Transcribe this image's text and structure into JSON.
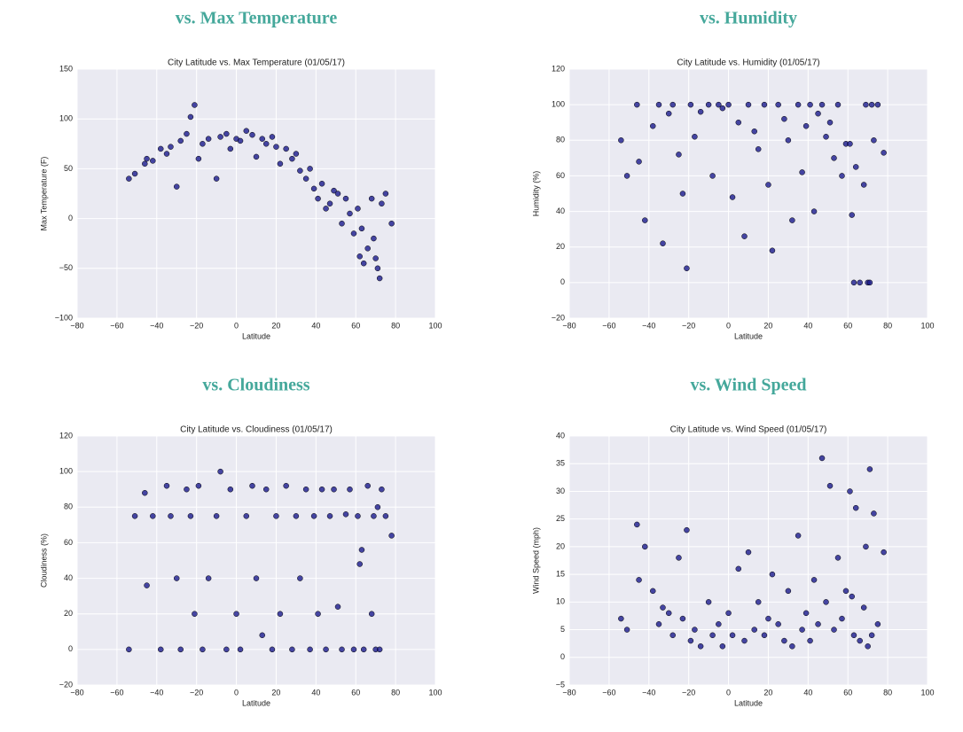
{
  "headings": [
    "vs. Max Temperature",
    "vs. Humidity",
    "vs. Cloudiness",
    "vs. Wind Speed"
  ],
  "chart_data": [
    {
      "type": "scatter",
      "title": "City Latitude vs. Max Temperature (01/05/17)",
      "x_label": "Latitude",
      "y_label": "Max Temperature (F)",
      "color": "#1a1a8c",
      "grid": true,
      "xlim": [
        -80,
        100
      ],
      "xticks": [
        {
          "value": -80,
          "label": "−80"
        },
        {
          "value": -60,
          "label": "−60"
        },
        {
          "value": -40,
          "label": "−40"
        },
        {
          "value": -20,
          "label": "−20"
        },
        0,
        20,
        40,
        60,
        80,
        100
      ],
      "ylim": [
        -100,
        150
      ],
      "yticks": [
        {
          "value": -100,
          "label": "−100"
        },
        {
          "value": -50,
          "label": "−50"
        },
        0,
        50,
        100,
        150
      ],
      "x": [
        -54,
        -51,
        -46,
        -45,
        -42,
        -38,
        -35,
        -33,
        -30,
        -28,
        -25,
        -23,
        -21,
        -19,
        -17,
        -14,
        -10,
        -8,
        -5,
        -3,
        0,
        2,
        5,
        8,
        10,
        13,
        15,
        18,
        20,
        22,
        25,
        28,
        30,
        32,
        35,
        37,
        39,
        41,
        43,
        45,
        47,
        49,
        51,
        53,
        55,
        57,
        59,
        61,
        63,
        64,
        66,
        68,
        69,
        70,
        71,
        72,
        73,
        75,
        78,
        62
      ],
      "values": [
        40,
        45,
        55,
        60,
        58,
        70,
        65,
        72,
        32,
        78,
        85,
        102,
        114,
        60,
        75,
        80,
        40,
        82,
        85,
        70,
        80,
        78,
        88,
        84,
        62,
        80,
        75,
        82,
        72,
        55,
        70,
        60,
        65,
        48,
        40,
        50,
        30,
        20,
        35,
        10,
        15,
        28,
        25,
        -5,
        20,
        5,
        -15,
        10,
        -10,
        -45,
        -30,
        20,
        -20,
        -40,
        -50,
        -60,
        15,
        25,
        -5,
        -38
      ]
    },
    {
      "type": "scatter",
      "title": "City Latitude vs. Humidity (01/05/17)",
      "x_label": "Latitude",
      "y_label": "Humidity (%)",
      "color": "#1a1a8c",
      "grid": true,
      "xlim": [
        -80,
        100
      ],
      "xticks": [
        {
          "value": -80,
          "label": "−80"
        },
        {
          "value": -60,
          "label": "−60"
        },
        {
          "value": -40,
          "label": "−40"
        },
        {
          "value": -20,
          "label": "−20"
        },
        0,
        20,
        40,
        60,
        80,
        100
      ],
      "ylim": [
        -20,
        120
      ],
      "yticks": [
        {
          "value": -20,
          "label": "−20"
        },
        0,
        20,
        40,
        60,
        80,
        100,
        120
      ],
      "x": [
        -54,
        -51,
        -46,
        -45,
        -42,
        -38,
        -35,
        -33,
        -30,
        -28,
        -25,
        -23,
        -21,
        -19,
        -17,
        -14,
        -10,
        -8,
        -5,
        -3,
        0,
        2,
        5,
        8,
        10,
        13,
        15,
        18,
        20,
        22,
        25,
        28,
        30,
        32,
        35,
        37,
        39,
        41,
        43,
        45,
        47,
        49,
        51,
        53,
        55,
        57,
        59,
        61,
        63,
        64,
        66,
        68,
        69,
        70,
        71,
        72,
        73,
        75,
        78,
        62
      ],
      "values": [
        80,
        60,
        100,
        68,
        35,
        88,
        100,
        22,
        95,
        100,
        72,
        50,
        8,
        100,
        82,
        96,
        100,
        60,
        100,
        98,
        100,
        48,
        90,
        26,
        100,
        85,
        75,
        100,
        55,
        18,
        100,
        92,
        80,
        35,
        100,
        62,
        88,
        100,
        40,
        95,
        100,
        82,
        90,
        70,
        100,
        60,
        78,
        78,
        0,
        65,
        0,
        55,
        100,
        0,
        0,
        100,
        80,
        100,
        73,
        38
      ]
    },
    {
      "type": "scatter",
      "title": "City Latitude vs. Cloudiness (01/05/17)",
      "x_label": "Latitude",
      "y_label": "Cloudiness (%)",
      "color": "#1a1a8c",
      "grid": true,
      "xlim": [
        -80,
        100
      ],
      "xticks": [
        {
          "value": -80,
          "label": "−80"
        },
        {
          "value": -60,
          "label": "−60"
        },
        {
          "value": -40,
          "label": "−40"
        },
        {
          "value": -20,
          "label": "−20"
        },
        0,
        20,
        40,
        60,
        80,
        100
      ],
      "ylim": [
        -20,
        120
      ],
      "yticks": [
        {
          "value": -20,
          "label": "−20"
        },
        0,
        20,
        40,
        60,
        80,
        100,
        120
      ],
      "x": [
        -54,
        -51,
        -46,
        -45,
        -42,
        -38,
        -35,
        -33,
        -30,
        -28,
        -25,
        -23,
        -21,
        -19,
        -17,
        -14,
        -10,
        -8,
        -5,
        -3,
        0,
        2,
        5,
        8,
        10,
        13,
        15,
        18,
        20,
        22,
        25,
        28,
        30,
        32,
        35,
        37,
        39,
        41,
        43,
        45,
        47,
        49,
        51,
        53,
        55,
        57,
        59,
        61,
        63,
        64,
        66,
        68,
        69,
        70,
        71,
        72,
        73,
        75,
        78,
        62
      ],
      "values": [
        0,
        75,
        88,
        36,
        75,
        0,
        92,
        75,
        40,
        0,
        90,
        75,
        20,
        92,
        0,
        40,
        75,
        100,
        0,
        90,
        20,
        0,
        75,
        92,
        40,
        8,
        90,
        0,
        75,
        20,
        92,
        0,
        75,
        40,
        90,
        0,
        75,
        20,
        90,
        0,
        75,
        90,
        24,
        0,
        76,
        90,
        0,
        75,
        56,
        0,
        92,
        20,
        75,
        0,
        80,
        0,
        90,
        75,
        64,
        48
      ]
    },
    {
      "type": "scatter",
      "title": "City Latitude vs. Wind Speed (01/05/17)",
      "x_label": "Latitude",
      "y_label": "Wind Speed (mph)",
      "color": "#1a1a8c",
      "grid": true,
      "xlim": [
        -80,
        100
      ],
      "xticks": [
        {
          "value": -80,
          "label": "−80"
        },
        {
          "value": -60,
          "label": "−60"
        },
        {
          "value": -40,
          "label": "−40"
        },
        {
          "value": -20,
          "label": "−20"
        },
        0,
        20,
        40,
        60,
        80,
        100
      ],
      "ylim": [
        -5,
        40
      ],
      "yticks": [
        {
          "value": -5,
          "label": "−5"
        },
        0,
        5,
        10,
        15,
        20,
        25,
        30,
        35,
        40
      ],
      "x": [
        -54,
        -51,
        -46,
        -45,
        -42,
        -38,
        -35,
        -33,
        -30,
        -28,
        -25,
        -23,
        -21,
        -19,
        -17,
        -14,
        -10,
        -8,
        -5,
        -3,
        0,
        2,
        5,
        8,
        10,
        13,
        15,
        18,
        20,
        22,
        25,
        28,
        30,
        32,
        35,
        37,
        39,
        41,
        43,
        45,
        47,
        49,
        51,
        53,
        55,
        57,
        59,
        61,
        63,
        64,
        66,
        68,
        69,
        70,
        71,
        72,
        73,
        75,
        78,
        62
      ],
      "values": [
        7,
        5,
        24,
        14,
        20,
        12,
        6,
        9,
        8,
        4,
        18,
        7,
        23,
        3,
        5,
        2,
        10,
        4,
        6,
        2,
        8,
        4,
        16,
        3,
        19,
        5,
        10,
        4,
        7,
        15,
        6,
        3,
        12,
        2,
        22,
        5,
        8,
        3,
        14,
        6,
        36,
        10,
        31,
        5,
        18,
        7,
        12,
        30,
        4,
        27,
        3,
        9,
        20,
        2,
        34,
        4,
        26,
        6,
        19,
        11
      ]
    }
  ]
}
